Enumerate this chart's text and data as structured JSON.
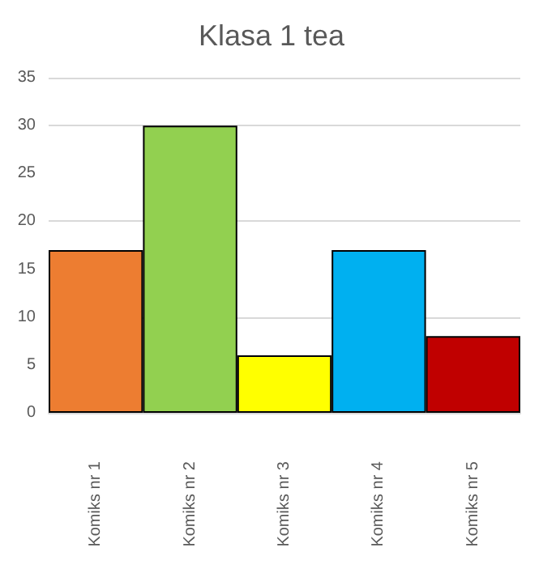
{
  "chart_data": {
    "type": "bar",
    "title": "Klasa 1 tea",
    "categories": [
      "Komiks nr 1",
      "Komiks nr 2",
      "Komiks nr 3",
      "Komiks nr 4",
      "Komiks nr 5"
    ],
    "values": [
      17,
      30,
      6,
      17,
      8
    ],
    "colors": [
      "#ed7d31",
      "#92d050",
      "#ffff00",
      "#00b0f0",
      "#c00000"
    ],
    "ylim": [
      0,
      35
    ],
    "yticks": [
      0,
      5,
      10,
      15,
      20,
      25,
      30,
      35
    ],
    "grid": "y"
  }
}
